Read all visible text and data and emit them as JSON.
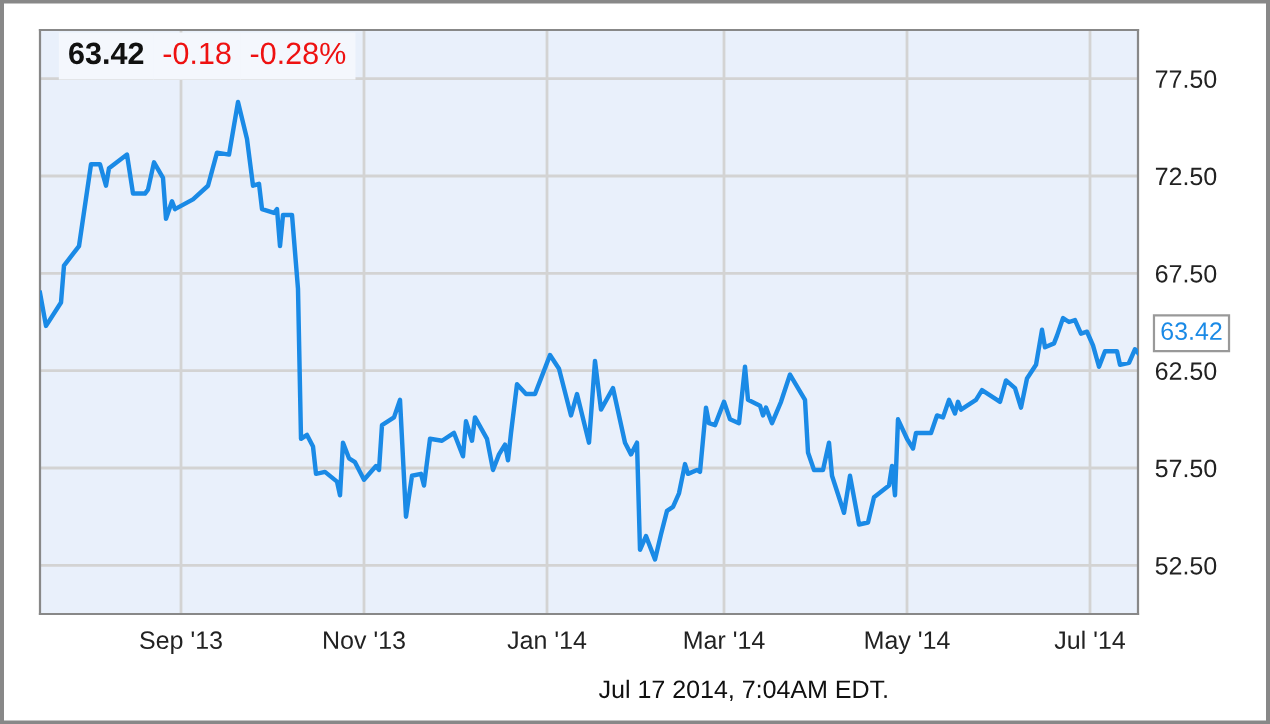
{
  "chart_data": {
    "type": "line",
    "title": "63.42",
    "x": [
      "2013-07-16",
      "2013-07-18",
      "2013-07-23",
      "2013-07-24",
      "2013-07-29",
      "2013-08-02",
      "2013-08-05",
      "2013-08-07",
      "2013-08-08",
      "2013-08-14",
      "2013-08-16",
      "2013-08-20",
      "2013-08-21",
      "2013-08-23",
      "2013-08-26",
      "2013-08-27",
      "2013-08-29",
      "2013-08-30",
      "2013-09-05",
      "2013-09-10",
      "2013-09-13",
      "2013-09-17",
      "2013-09-20",
      "2013-09-23",
      "2013-09-25",
      "2013-09-27",
      "2013-09-28",
      "2013-10-02",
      "2013-10-03",
      "2013-10-04",
      "2013-10-05",
      "2013-10-08",
      "2013-10-10",
      "2013-10-11",
      "2013-10-13",
      "2013-10-15",
      "2013-10-16",
      "2013-10-19",
      "2013-10-23",
      "2013-10-24",
      "2013-10-25",
      "2013-10-27",
      "2013-10-29",
      "2013-11-01",
      "2013-11-05",
      "2013-11-06",
      "2013-11-07",
      "2013-11-11",
      "2013-11-13",
      "2013-11-15",
      "2013-11-17",
      "2013-11-20",
      "2013-11-21",
      "2013-11-23",
      "2013-11-27",
      "2013-12-01",
      "2013-12-04",
      "2013-12-05",
      "2013-12-07",
      "2013-12-08",
      "2013-12-12",
      "2013-12-14",
      "2013-12-16",
      "2013-12-18",
      "2013-12-19",
      "2013-12-20",
      "2013-12-22",
      "2013-12-25",
      "2013-12-28",
      "2014-01-02",
      "2014-01-05",
      "2014-01-09",
      "2014-01-11",
      "2014-01-15",
      "2014-01-17",
      "2014-01-19",
      "2014-01-23",
      "2014-01-27",
      "2014-01-29",
      "2014-01-31",
      "2014-02-01",
      "2014-02-03",
      "2014-02-06",
      "2014-02-08",
      "2014-02-10",
      "2014-02-12",
      "2014-02-14",
      "2014-02-16",
      "2014-02-17",
      "2014-02-20",
      "2014-02-21",
      "2014-02-23",
      "2014-02-24",
      "2014-02-26",
      "2014-03-01",
      "2014-03-03",
      "2014-03-06",
      "2014-03-08",
      "2014-03-09",
      "2014-03-13",
      "2014-03-14",
      "2014-03-15",
      "2014-03-17",
      "2014-03-20",
      "2014-03-23",
      "2014-03-28",
      "2014-03-29",
      "2014-03-31",
      "2014-04-03",
      "2014-04-05",
      "2014-04-06",
      "2014-04-10",
      "2014-04-12",
      "2014-04-15",
      "2014-04-18",
      "2014-04-20",
      "2014-04-25",
      "2014-04-26",
      "2014-04-27",
      "2014-04-28",
      "2014-05-01",
      "2014-05-03",
      "2014-05-04",
      "2014-05-09",
      "2014-05-11",
      "2014-05-13",
      "2014-05-15",
      "2014-05-17",
      "2014-05-18",
      "2014-05-19",
      "2014-05-24",
      "2014-05-26",
      "2014-05-31",
      "2014-06-01",
      "2014-06-03",
      "2014-06-06",
      "2014-06-08",
      "2014-06-10",
      "2014-06-13",
      "2014-06-15",
      "2014-06-16",
      "2014-06-19",
      "2014-06-20",
      "2014-06-22",
      "2014-06-24",
      "2014-06-26",
      "2014-06-28",
      "2014-06-30",
      "2014-07-02",
      "2014-07-04",
      "2014-07-06",
      "2014-07-10",
      "2014-07-11",
      "2014-07-14",
      "2014-07-16",
      "2014-07-17"
    ],
    "series": [
      {
        "color": "#1a8ae6",
        "values": [
          66.5,
          64.8,
          66.0,
          67.9,
          68.9,
          73.1,
          73.1,
          72.0,
          72.9,
          73.6,
          71.6,
          71.6,
          71.8,
          73.2,
          72.4,
          70.3,
          71.2,
          70.8,
          71.3,
          72.0,
          73.7,
          73.6,
          76.3,
          74.4,
          72.0,
          72.1,
          70.8,
          70.6,
          70.8,
          68.9,
          70.5,
          70.5,
          66.7,
          59.0,
          59.2,
          58.6,
          57.2,
          57.3,
          56.8,
          56.1,
          58.8,
          58.0,
          57.8,
          56.9,
          57.6,
          57.4,
          59.7,
          60.1,
          61.0,
          55.0,
          57.1,
          57.2,
          56.6,
          59.0,
          58.9,
          59.3,
          58.1,
          59.9,
          58.9,
          60.1,
          59.0,
          57.4,
          58.2,
          58.7,
          57.9,
          59.3,
          61.8,
          61.3,
          61.3,
          63.3,
          62.6,
          60.2,
          61.3,
          58.8,
          63.0,
          60.5,
          61.6,
          58.8,
          58.2,
          58.8,
          53.3,
          54.0,
          52.8,
          54.1,
          55.3,
          55.5,
          56.2,
          57.7,
          57.2,
          57.4,
          57.3,
          60.6,
          59.8,
          59.7,
          60.9,
          60.0,
          59.8,
          62.7,
          61.0,
          60.7,
          60.2,
          60.6,
          59.8,
          60.9,
          62.3,
          61.0,
          58.3,
          57.4,
          57.4,
          58.8,
          57.1,
          55.2,
          57.1,
          54.6,
          54.7,
          56.0,
          56.6,
          57.6,
          56.1,
          60.0,
          59.0,
          58.5,
          59.3,
          59.3,
          60.2,
          60.1,
          61.0,
          60.3,
          60.9,
          60.5,
          61.0,
          61.5,
          61.0,
          60.9,
          62.0,
          61.6,
          60.6,
          62.1,
          62.8,
          64.6,
          63.7,
          63.9,
          64.3,
          65.2,
          65.0,
          65.1,
          64.4,
          64.5,
          63.8,
          62.7,
          63.5,
          63.5,
          62.8,
          62.9,
          63.6,
          63.42
        ],
        "value_labels": [
          null,
          null,
          null,
          null,
          null,
          null,
          null,
          null,
          null,
          null,
          null,
          null,
          null,
          null,
          null,
          null,
          null,
          null,
          null,
          null,
          null,
          null,
          null,
          null,
          null,
          null,
          null,
          null,
          null,
          null,
          null,
          null,
          null,
          null,
          null,
          null,
          null,
          null,
          null,
          null,
          null,
          null,
          null,
          null,
          null,
          null,
          null,
          null,
          null,
          null,
          null,
          null,
          null,
          null,
          null,
          null,
          null,
          null,
          null,
          null,
          null,
          null,
          null,
          null,
          null,
          null,
          null,
          null,
          null,
          null,
          null,
          null,
          null,
          null,
          null,
          null,
          null,
          null,
          null,
          null,
          null,
          null,
          null,
          null,
          null,
          null,
          null,
          null,
          null,
          null,
          null,
          null,
          null,
          null,
          null,
          null,
          null,
          null,
          null,
          null,
          null,
          null,
          null,
          null,
          null,
          null,
          null,
          null,
          null,
          null,
          null,
          null,
          null,
          null,
          null,
          null,
          null,
          null,
          null,
          null,
          null,
          null,
          null,
          null,
          null,
          null,
          null,
          null,
          null,
          null,
          null,
          null,
          null,
          null,
          null,
          null,
          null,
          null,
          null,
          null,
          null,
          null,
          null,
          null,
          null,
          null,
          null,
          null,
          null,
          null,
          null,
          null,
          null,
          null,
          null,
          "63.42"
        ]
      }
    ],
    "xlim": [
      "2013-07-16",
      "2014-07-17"
    ],
    "xticks": [
      {
        "value": "2013-09-01",
        "label": "Sep '13"
      },
      {
        "value": "2013-11-01",
        "label": "Nov '13"
      },
      {
        "value": "2014-01-01",
        "label": "Jan '14"
      },
      {
        "value": "2014-03-01",
        "label": "Mar '14"
      },
      {
        "value": "2014-05-01",
        "label": "May '14"
      },
      {
        "value": "2014-07-01",
        "label": "Jul '14"
      }
    ],
    "ylim": [
      50,
      80
    ],
    "yticks": [
      {
        "value": 52.5,
        "label": "52.50"
      },
      {
        "value": 57.5,
        "label": "57.50"
      },
      {
        "value": 62.5,
        "label": "62.50"
      },
      {
        "value": 67.5,
        "label": "67.50"
      },
      {
        "value": 72.5,
        "label": "72.50"
      },
      {
        "value": 77.5,
        "label": "77.50"
      }
    ],
    "grid": true,
    "legend": false,
    "marker": "none",
    "line_style": "solid",
    "annotations": [
      "-0.18",
      "-0.28%",
      "Jul 17 2014, 7:04AM EDT."
    ]
  }
}
